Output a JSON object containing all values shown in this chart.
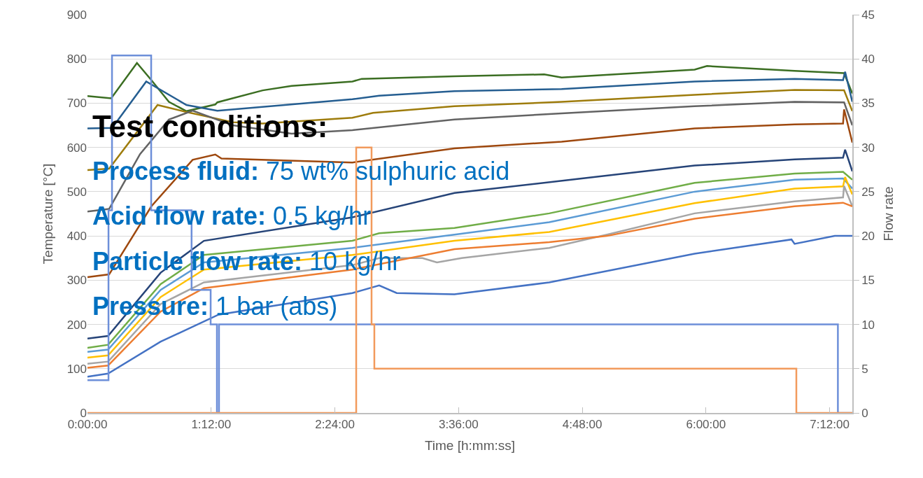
{
  "chart_data": {
    "type": "line",
    "xlabel": "Time [h:mm:ss]",
    "ylabel": "Temperature [°C]",
    "y2label": "Flow rate",
    "xlim": [
      0,
      7.42
    ],
    "xticks": [
      {
        "value": 0,
        "label": "0:00:00"
      },
      {
        "value": 1.2,
        "label": "1:12:00"
      },
      {
        "value": 2.4,
        "label": "2:24:00"
      },
      {
        "value": 3.6,
        "label": "3:36:00"
      },
      {
        "value": 4.8,
        "label": "4:48:00"
      },
      {
        "value": 6.0,
        "label": "6:00:00"
      },
      {
        "value": 7.2,
        "label": "7:12:00"
      }
    ],
    "ylim": [
      0,
      900
    ],
    "yticks": [
      0,
      100,
      200,
      300,
      400,
      500,
      600,
      700,
      800,
      900
    ],
    "y2lim": [
      0,
      45
    ],
    "y2ticks": [
      0,
      5,
      10,
      15,
      20,
      25,
      30,
      35,
      40,
      45
    ],
    "grid": "y",
    "line_style": "solid",
    "annotations": [
      "Test conditions:",
      "Process fluid: 75 wt% sulphuric acid",
      "Acid flow rate: 0.5 kg/hr",
      "Particle flow rate: 10 kg/hr",
      "Pressure: 1 bar (abs)"
    ],
    "series": [
      {
        "color": "#3b6e22",
        "x": [
          0,
          0.23,
          0.48,
          0.62,
          0.79,
          0.96,
          1.24,
          1.26,
          1.7,
          1.98,
          2.57,
          2.66,
          3.56,
          4.43,
          4.6,
          5.89,
          6.01,
          6.86,
          7.34,
          7.42
        ],
        "values": [
          716,
          711,
          791,
          752,
          703,
          682,
          697,
          702,
          729,
          739,
          749,
          755,
          761,
          765,
          758,
          776,
          784,
          773,
          768,
          722
        ]
      },
      {
        "color": "#255e91",
        "x": [
          0,
          0.24,
          0.57,
          0.96,
          1.26,
          2.57,
          2.83,
          3.56,
          4.6,
          5.89,
          6.86,
          7.33,
          7.35,
          7.42
        ],
        "values": [
          643,
          644,
          749,
          696,
          683,
          709,
          717,
          727,
          732,
          749,
          755,
          752,
          771,
          703
        ]
      },
      {
        "color": "#9e7c0c",
        "x": [
          0,
          0.21,
          0.68,
          0.96,
          1.41,
          1.7,
          2.57,
          2.77,
          3.56,
          4.6,
          5.89,
          6.86,
          7.34,
          7.42
        ],
        "values": [
          549,
          552,
          696,
          680,
          657,
          654,
          667,
          678,
          693,
          703,
          719,
          730,
          729,
          682
        ]
      },
      {
        "color": "#636363",
        "x": [
          0,
          0.21,
          0.51,
          0.79,
          1.02,
          1.41,
          1.98,
          2.57,
          3.56,
          4.6,
          5.89,
          6.86,
          7.34,
          7.42
        ],
        "values": [
          455,
          461,
          585,
          663,
          683,
          650,
          631,
          639,
          663,
          677,
          693,
          703,
          702,
          650
        ]
      },
      {
        "color": "#9e480e",
        "x": [
          0,
          0.21,
          0.62,
          1.02,
          1.24,
          1.3,
          2.57,
          3.56,
          4.6,
          5.89,
          6.86,
          7.33,
          7.34,
          7.42
        ],
        "values": [
          307,
          313,
          467,
          572,
          584,
          575,
          566,
          598,
          613,
          643,
          652,
          654,
          686,
          611
        ]
      },
      {
        "color": "#264478",
        "x": [
          0,
          0.2,
          0.71,
          1.13,
          2.57,
          3.56,
          5.89,
          6.86,
          7.33,
          7.35,
          7.42
        ],
        "values": [
          168,
          174,
          317,
          389,
          442,
          497,
          559,
          573,
          577,
          595,
          546
        ]
      },
      {
        "color": "#70ad47",
        "x": [
          0,
          0.2,
          0.71,
          1.13,
          2.57,
          2.83,
          3.56,
          4.48,
          5.89,
          6.86,
          7.33,
          7.42
        ],
        "values": [
          147,
          154,
          291,
          357,
          389,
          406,
          418,
          451,
          520,
          541,
          545,
          527
        ]
      },
      {
        "color": "#5b9bd5",
        "x": [
          0,
          0.2,
          0.71,
          1.13,
          2.57,
          3.56,
          4.48,
          5.89,
          6.86,
          7.33,
          7.42
        ],
        "values": [
          138,
          143,
          278,
          340,
          373,
          403,
          431,
          500,
          527,
          530,
          507
        ]
      },
      {
        "color": "#ffc000",
        "x": [
          0,
          0.2,
          0.71,
          1.13,
          2.57,
          3.56,
          4.48,
          5.89,
          6.86,
          7.33,
          7.35,
          7.42
        ],
        "values": [
          125,
          130,
          262,
          324,
          357,
          389,
          409,
          474,
          507,
          512,
          533,
          494
        ]
      },
      {
        "color": "#a5a5a5",
        "x": [
          0,
          0.2,
          0.71,
          1.13,
          2.57,
          2.83,
          3.25,
          3.39,
          3.63,
          4.48,
          5.04,
          5.89,
          6.86,
          7.33,
          7.34,
          7.42
        ],
        "values": [
          111,
          116,
          246,
          295,
          334,
          350,
          350,
          340,
          350,
          373,
          403,
          451,
          478,
          487,
          513,
          467
        ]
      },
      {
        "color": "#ed7d31",
        "x": [
          0,
          0.2,
          0.71,
          1.13,
          2.57,
          3.56,
          4.48,
          5.04,
          5.89,
          6.86,
          7.33,
          7.42
        ],
        "values": [
          102,
          107,
          229,
          282,
          324,
          370,
          386,
          400,
          439,
          467,
          475,
          467
        ]
      },
      {
        "color": "#4472c4",
        "x": [
          0,
          0.2,
          0.71,
          1.27,
          2.57,
          2.83,
          3.0,
          3.56,
          4.48,
          5.89,
          6.83,
          6.86,
          7.25,
          7.42
        ],
        "values": [
          82,
          89,
          161,
          222,
          271,
          288,
          271,
          268,
          295,
          360,
          392,
          382,
          400,
          400
        ]
      },
      {
        "color": "#6d8fd9",
        "axis": "y2",
        "x": [
          0,
          0.204,
          0.204,
          0.238,
          0.238,
          0.618,
          0.618,
          1.01,
          1.01,
          1.195,
          1.195,
          1.256,
          1.256,
          1.276,
          1.276,
          7.28,
          7.28,
          7.42
        ],
        "values": [
          3.7,
          3.7,
          22.9,
          22.9,
          40.4,
          40.4,
          22.9,
          22.9,
          13.9,
          13.9,
          10,
          10,
          0,
          0,
          10,
          10,
          0,
          0
        ]
      },
      {
        "color": "#f29a5c",
        "axis": "y2",
        "x": [
          0,
          2.607,
          2.607,
          2.756,
          2.756,
          2.783,
          2.783,
          6.877,
          6.877,
          7.42
        ],
        "values": [
          0,
          0,
          30,
          30,
          10,
          10,
          5,
          5,
          0,
          0
        ]
      }
    ]
  }
}
